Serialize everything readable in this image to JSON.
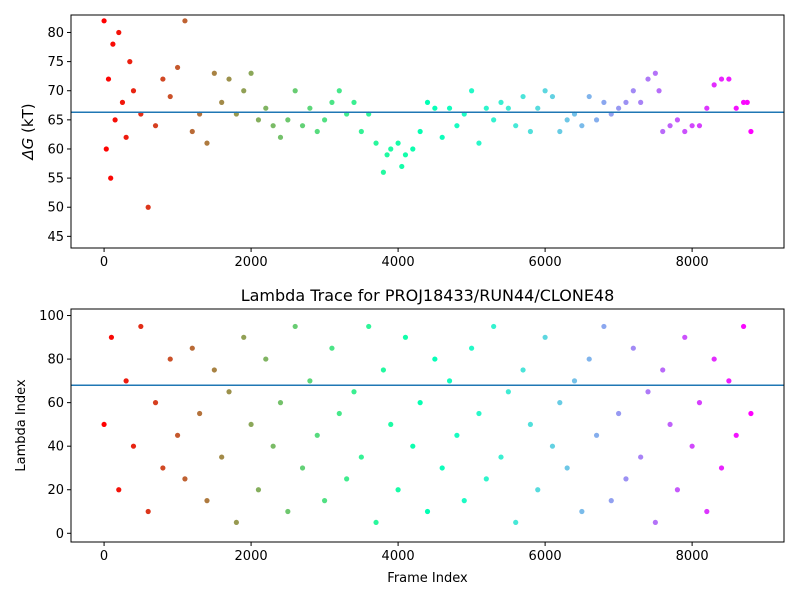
{
  "chart_data": [
    {
      "type": "scatter",
      "title": "",
      "xlabel": "",
      "ylabel_main": "ΔG",
      "ylabel_unit": " (kT)",
      "xlim": [
        -450,
        9250
      ],
      "ylim": [
        43,
        83
      ],
      "xticks": [
        0,
        2000,
        4000,
        6000,
        8000
      ],
      "yticks": [
        45,
        50,
        55,
        60,
        65,
        70,
        75,
        80
      ],
      "hline": 66.3,
      "hline_color": "#1f77b4",
      "colormap": "rainbow",
      "frame_max": 8800,
      "marker": "dot",
      "series": [
        {
          "x": [
            0,
            30,
            60,
            90,
            120,
            150,
            200,
            250,
            300,
            350,
            400,
            500,
            600,
            700,
            800,
            900,
            1000,
            1100,
            1200,
            1300,
            1400,
            1500,
            1600,
            1700,
            1800,
            1900,
            2000,
            2100,
            2200,
            2300,
            2400,
            2500,
            2600,
            2700,
            2800,
            2900,
            3000,
            3100,
            3200,
            3300,
            3400,
            3500,
            3600,
            3700,
            3800,
            3850,
            3900,
            4000,
            4050,
            4100,
            4200,
            4300,
            4400,
            4500,
            4600,
            4700,
            4800,
            4900,
            5000,
            5100,
            5200,
            5300,
            5400,
            5500,
            5600,
            5700,
            5800,
            5900,
            6000,
            6100,
            6200,
            6300,
            6400,
            6500,
            6600,
            6700,
            6800,
            6900,
            7000,
            7100,
            7200,
            7300,
            7400,
            7500,
            7550,
            7600,
            7700,
            7800,
            7900,
            8000,
            8100,
            8200,
            8300,
            8400,
            8500,
            8600,
            8700,
            8750,
            8800
          ],
          "y": [
            82,
            60,
            72,
            55,
            78,
            65,
            80,
            68,
            62,
            75,
            70,
            66,
            50,
            64,
            72,
            69,
            74,
            82,
            63,
            66,
            61,
            73,
            68,
            72,
            66,
            70,
            73,
            65,
            67,
            64,
            62,
            65,
            70,
            64,
            67,
            63,
            65,
            68,
            70,
            66,
            68,
            63,
            66,
            61,
            56,
            59,
            60,
            61,
            57,
            59,
            60,
            63,
            68,
            67,
            62,
            67,
            64,
            66,
            70,
            61,
            67,
            65,
            68,
            67,
            64,
            69,
            63,
            67,
            70,
            69,
            63,
            65,
            66,
            64,
            69,
            65,
            68,
            66,
            67,
            68,
            70,
            68,
            72,
            73,
            70,
            63,
            64,
            65,
            63,
            64,
            64,
            67,
            71,
            72,
            72,
            67,
            68,
            68,
            63
          ]
        }
      ]
    },
    {
      "type": "scatter",
      "title": "Lambda Trace for PROJ18433/RUN44/CLONE48",
      "xlabel": "Frame Index",
      "ylabel": "Lambda Index",
      "xlim": [
        -450,
        9250
      ],
      "ylim": [
        -4,
        103
      ],
      "xticks": [
        0,
        2000,
        4000,
        6000,
        8000
      ],
      "yticks": [
        0,
        20,
        40,
        60,
        80,
        100
      ],
      "hline": 68,
      "hline_color": "#1f77b4",
      "colormap": "rainbow",
      "frame_max": 8800,
      "lambda_min": 0,
      "lambda_max": 99,
      "marker": "dot",
      "series": [
        {
          "x": [
            0,
            100,
            200,
            300,
            400,
            500,
            600,
            700,
            800,
            900,
            1000,
            1100,
            1200,
            1300,
            1400,
            1500,
            1600,
            1700,
            1800,
            1900,
            2000,
            2100,
            2200,
            2300,
            2400,
            2500,
            2600,
            2700,
            2800,
            2900,
            3000,
            3100,
            3200,
            3300,
            3400,
            3500,
            3600,
            3700,
            3800,
            3900,
            4000,
            4100,
            4200,
            4300,
            4400,
            4500,
            4600,
            4700,
            4800,
            4900,
            5000,
            5100,
            5200,
            5300,
            5400,
            5500,
            5600,
            5700,
            5800,
            5900,
            6000,
            6100,
            6200,
            6300,
            6400,
            6500,
            6600,
            6700,
            6800,
            6900,
            7000,
            7100,
            7200,
            7300,
            7400,
            7500,
            7600,
            7700,
            7800,
            7900,
            8000,
            8100,
            8200,
            8300,
            8400,
            8500,
            8600,
            8700,
            8800
          ],
          "y": [
            50,
            90,
            20,
            70,
            40,
            95,
            10,
            60,
            30,
            80,
            45,
            25,
            85,
            55,
            15,
            75,
            35,
            65,
            5,
            90,
            50,
            20,
            80,
            40,
            60,
            10,
            95,
            30,
            70,
            45,
            15,
            85,
            55,
            25,
            65,
            35,
            95,
            5,
            75,
            50,
            20,
            90,
            40,
            60,
            10,
            80,
            30,
            70,
            45,
            15,
            85,
            55,
            25,
            95,
            35,
            65,
            5,
            75,
            50,
            20,
            90,
            40,
            60,
            30,
            70,
            10,
            80,
            45,
            95,
            15,
            55,
            25,
            85,
            35,
            65,
            5,
            75,
            50,
            20,
            90,
            40,
            60,
            10,
            80,
            30,
            70,
            45,
            95,
            55
          ]
        }
      ]
    }
  ]
}
